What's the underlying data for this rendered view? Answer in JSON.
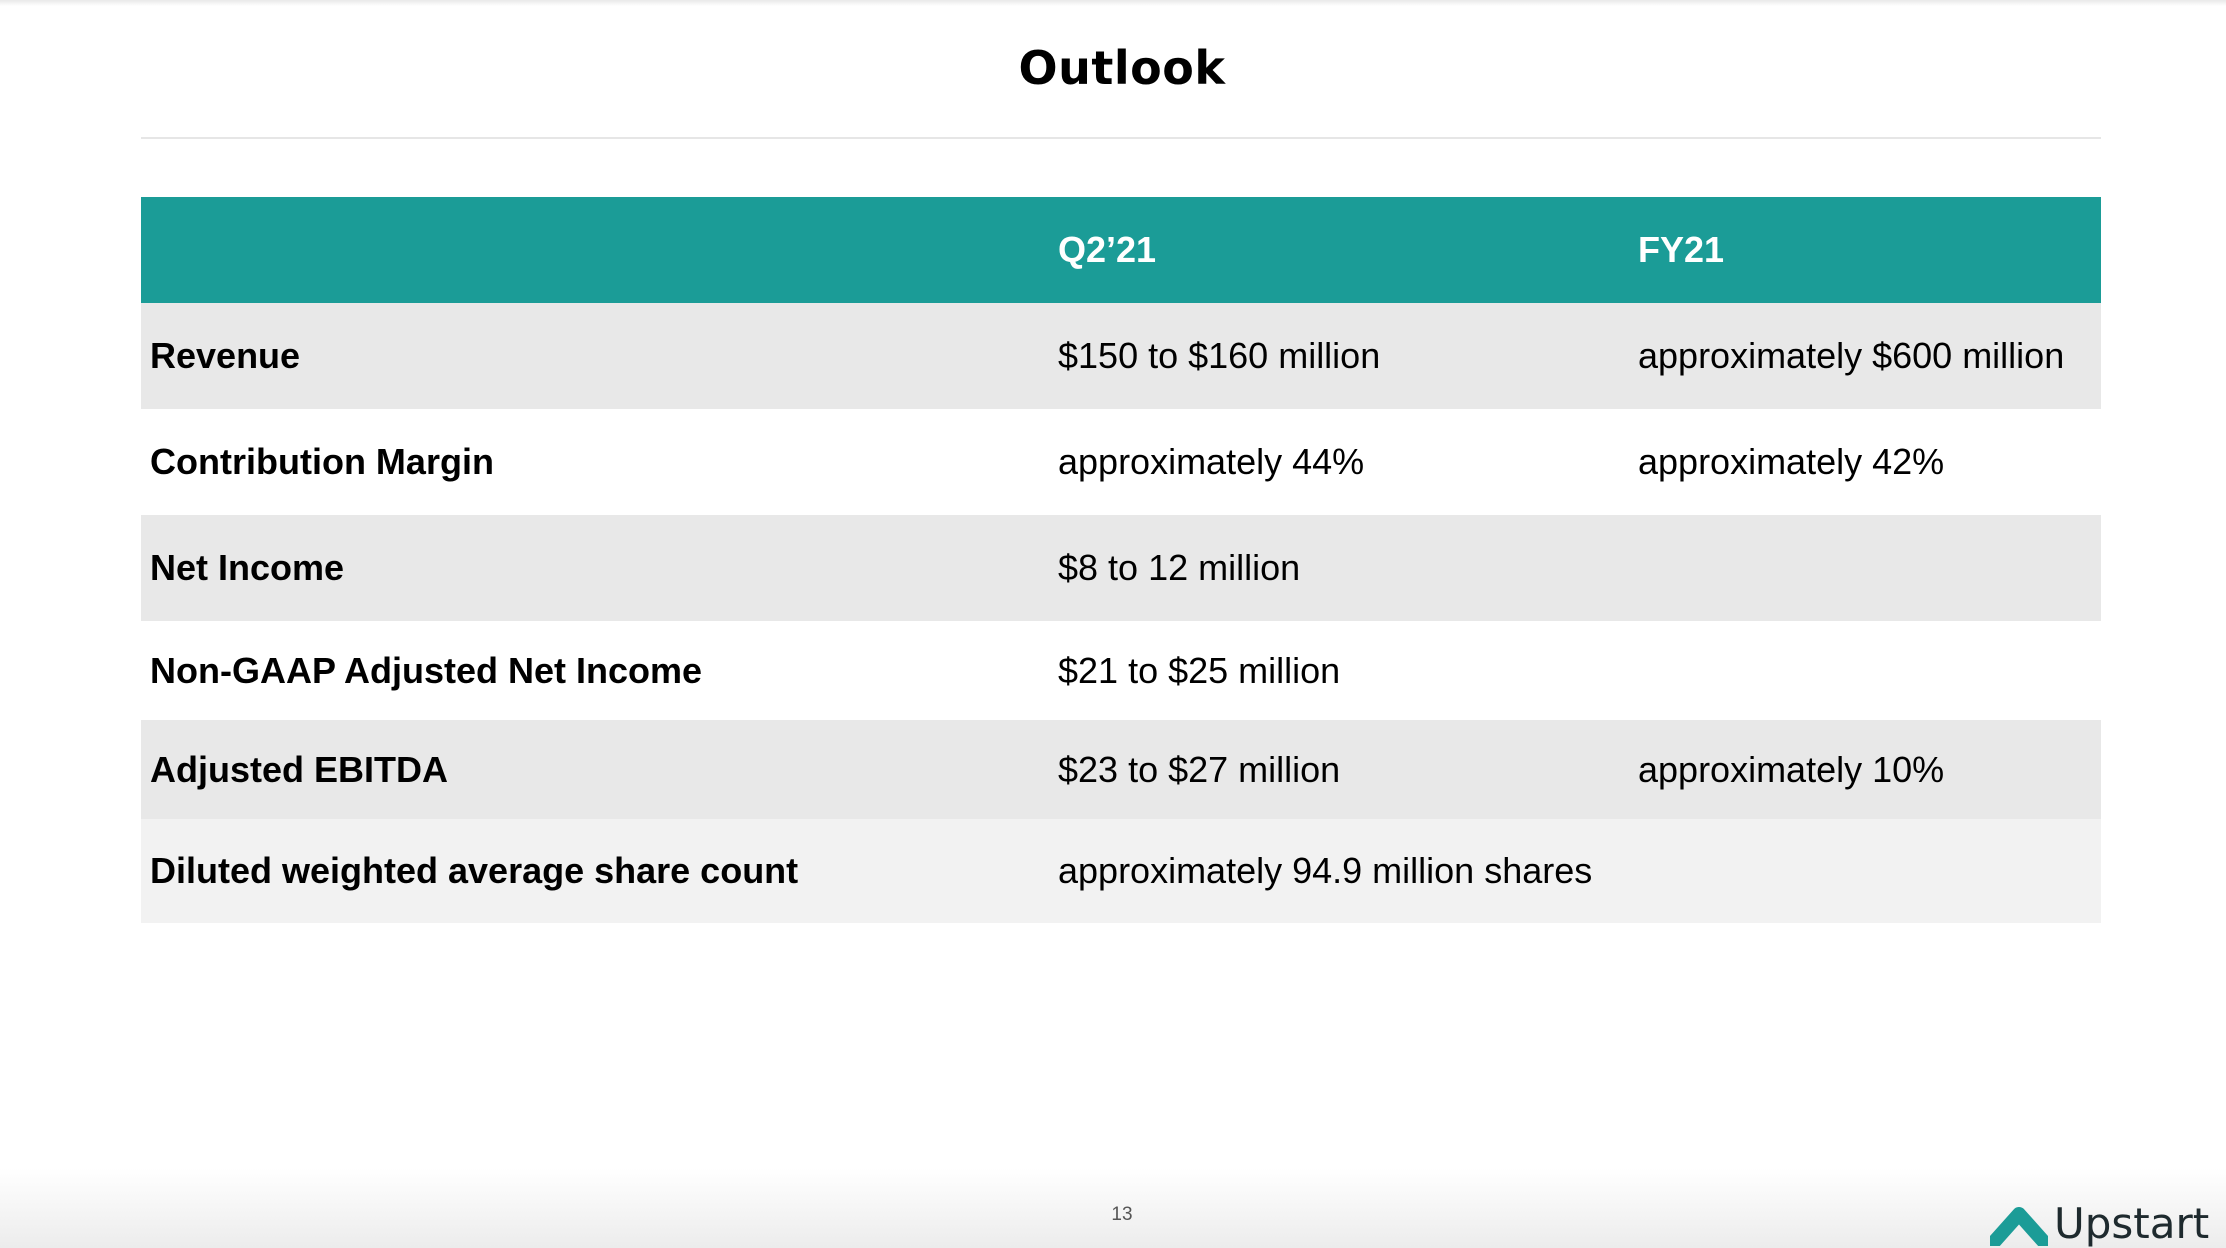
{
  "title": "Outlook",
  "table": {
    "columns": [
      "",
      "Q2’21",
      "FY21"
    ],
    "rows": [
      {
        "metric": "Revenue",
        "q2_21": "$150 to $160 million",
        "fy21": "approximately $600 million"
      },
      {
        "metric": "Contribution Margin",
        "q2_21": "approximately 44%",
        "fy21": "approximately 42%"
      },
      {
        "metric": "Net Income",
        "q2_21": "$8 to 12 million",
        "fy21": ""
      },
      {
        "metric": "Non-GAAP Adjusted Net Income",
        "q2_21": "$21 to $25 million",
        "fy21": ""
      },
      {
        "metric": "Adjusted EBITDA",
        "q2_21": "$23 to $27 million",
        "fy21": "approximately 10%"
      },
      {
        "metric": "Diluted weighted average share count",
        "q2_21": "approximately 94.9 million shares",
        "fy21": ""
      }
    ]
  },
  "footer": {
    "page_number": "13",
    "logo_text": "Upstart"
  },
  "colors": {
    "header_bg": "#1b9c97",
    "row_shade": "#e8e8e8",
    "row_light": "#f2f2f2",
    "row_white": "#ffffff"
  },
  "icons": {
    "logo": "upstart-logo-icon"
  }
}
